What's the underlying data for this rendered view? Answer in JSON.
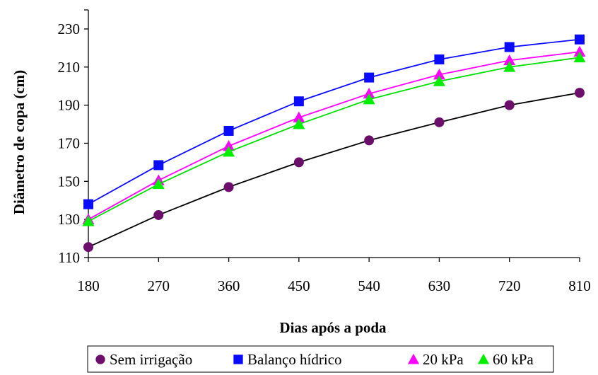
{
  "chart_data": {
    "type": "line",
    "title": "",
    "xlabel": "Dias após a poda",
    "ylabel": "Diâmetro de copa (cm)",
    "x": [
      180,
      270,
      360,
      450,
      540,
      630,
      720,
      810
    ],
    "x_ticks": [
      "180",
      "270",
      "360",
      "450",
      "540",
      "630",
      "720",
      "810"
    ],
    "ylim": [
      110,
      240
    ],
    "y_ticks": [
      "110",
      "130",
      "150",
      "170",
      "190",
      "210",
      "230"
    ],
    "y_tick_values": [
      110,
      130,
      150,
      170,
      190,
      210,
      230
    ],
    "grid": false,
    "legend_position": "bottom",
    "series": [
      {
        "name": "Sem irrigação",
        "marker": "circle",
        "color": "#6b0f6b",
        "line_color": "#000000",
        "values": [
          115.5,
          132.3,
          147,
          160,
          171.5,
          181,
          190,
          196.5
        ]
      },
      {
        "name": "Balanço hídrico",
        "marker": "square",
        "color": "#0a0aff",
        "line_color": "#0a0aff",
        "values": [
          138,
          158.5,
          176.5,
          192,
          204.5,
          214,
          220.5,
          224.5
        ]
      },
      {
        "name": "20 kPa",
        "marker": "triangle",
        "color": "#ff00ff",
        "line_color": "#ff00ff",
        "values": [
          130,
          150.5,
          168.5,
          183.5,
          196,
          206,
          213.5,
          218
        ]
      },
      {
        "name": "60 kPa",
        "marker": "triangle",
        "color": "#00ee00",
        "line_color": "#00dd00",
        "values": [
          129,
          148.5,
          165.5,
          180,
          193,
          202.5,
          210,
          215
        ]
      }
    ]
  }
}
